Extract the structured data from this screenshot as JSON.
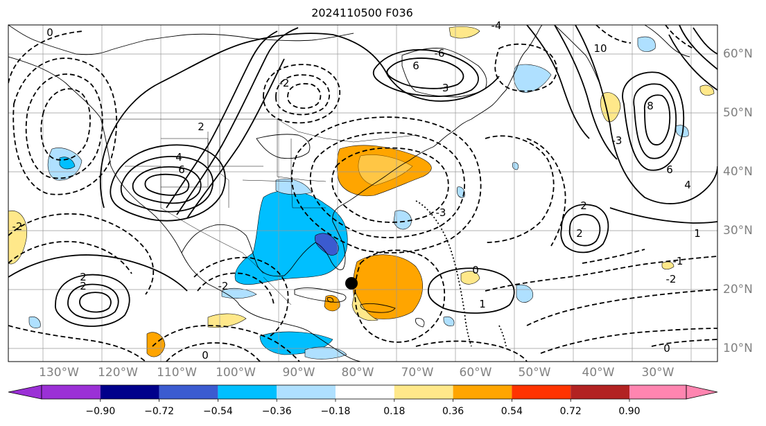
{
  "title": "2024110500 F036",
  "longitude_labels": [
    "130°W",
    "120°W",
    "110°W",
    "100°W",
    "90°W",
    "80°W",
    "70°W",
    "60°W",
    "50°W",
    "40°W",
    "30°W"
  ],
  "latitude_labels": [
    "60°N",
    "50°N",
    "40°N",
    "30°N",
    "20°N",
    "10°N"
  ],
  "colorbar": {
    "ticks": [
      "−0.90",
      "−0.72",
      "−0.54",
      "−0.36",
      "−0.18",
      "0.18",
      "0.36",
      "0.54",
      "0.72",
      "0.90"
    ],
    "colors": [
      "#9b30d6",
      "#00008b",
      "#3b5bd0",
      "#00bfff",
      "#afe0ff",
      "#ffffff",
      "#ffe88a",
      "#ffa500",
      "#ff3300",
      "#b22222",
      "#ff85b0"
    ]
  },
  "contour_labels": [
    "0",
    "2",
    "4",
    "6",
    "6",
    "8",
    "10",
    "-2",
    "-3",
    "-4",
    "-6",
    "2",
    "2",
    "2",
    "-2",
    "-3",
    "-3",
    "0",
    "1",
    "-1",
    "-2",
    "0",
    "1",
    "6",
    "4",
    "2",
    "-2",
    "0"
  ],
  "markers": [
    {
      "name": "storm-center-marker",
      "color": "#000000"
    }
  ]
}
